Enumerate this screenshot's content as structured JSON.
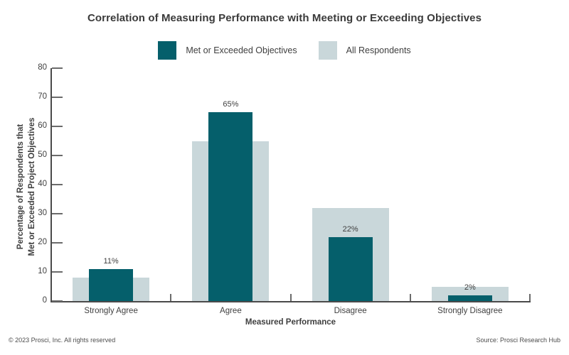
{
  "title": "Correlation of Measuring Performance with Meeting or Exceeding Objectives",
  "colors": {
    "met_or_exceeded": "#055f6b",
    "all_respondents": "#c9d7da",
    "axis": "#4a4a4a",
    "text": "#3f3f3f"
  },
  "legend": {
    "items": [
      {
        "label": "Met or Exceeded Objectives",
        "color": "#055f6b"
      },
      {
        "label": "All Respondents",
        "color": "#c9d7da"
      }
    ]
  },
  "chart_data": {
    "type": "bar",
    "title": "Correlation of Measuring Performance with Meeting or Exceeding Objectives",
    "categories": [
      "Strongly Agree",
      "Agree",
      "Disagree",
      "Strongly Disagree"
    ],
    "series": [
      {
        "name": "Met or Exceeded Objectives",
        "color": "#055f6b",
        "values": [
          11,
          65,
          22,
          2
        ],
        "value_labels": [
          "11%",
          "65%",
          "22%",
          "2%"
        ]
      },
      {
        "name": "All Respondents",
        "color": "#c9d7da",
        "values": [
          8,
          55,
          32,
          5
        ],
        "value_labels": []
      }
    ],
    "xlabel": "Measured Performance",
    "ylabel_lines": [
      "Percentage of Respondents that",
      "Met or Exceeded Project Objectives"
    ],
    "ylim": [
      0,
      80
    ],
    "yticks": [
      0,
      10,
      20,
      30,
      40,
      50,
      60,
      70,
      80
    ],
    "grid": false,
    "legend_position": "top"
  },
  "footer": {
    "left": "© 2023 Prosci, Inc. All rights reserved",
    "right": "Source: Prosci Research Hub"
  }
}
